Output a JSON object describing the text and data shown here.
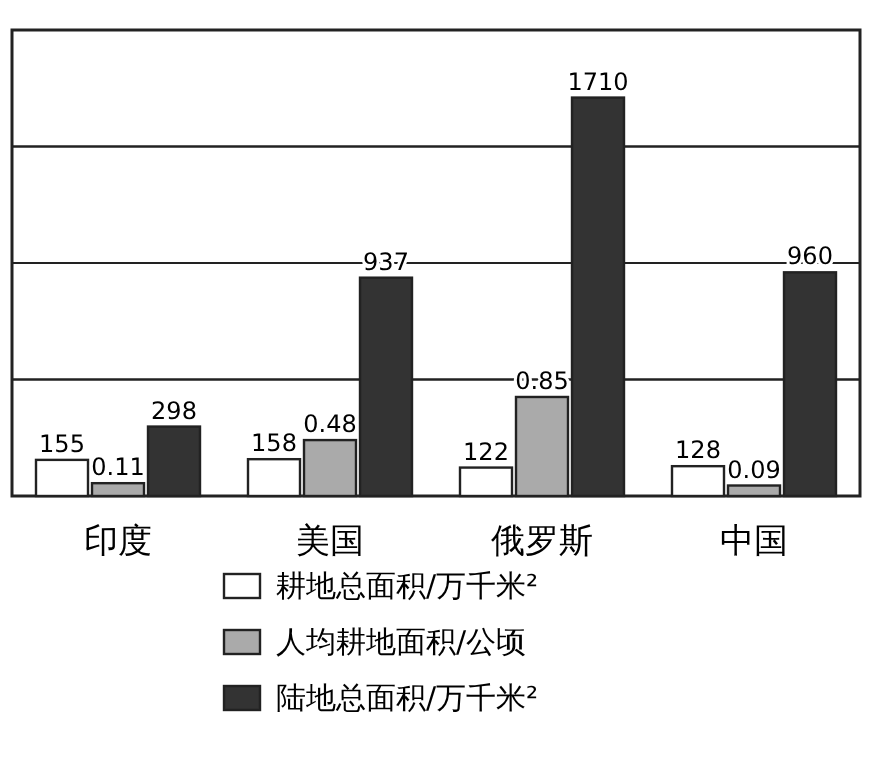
{
  "chart_data": {
    "type": "bar",
    "categories": [
      "印度",
      "美国",
      "俄罗斯",
      "中国"
    ],
    "series": [
      {
        "name": "耕地总面积/万千米²",
        "color": "#ffffff",
        "values": [
          155,
          158,
          122,
          128
        ],
        "axis": "y"
      },
      {
        "name": "人均耕地面积/公顷",
        "color": "#aaaaaa",
        "values": [
          0.11,
          0.48,
          0.85,
          0.09
        ],
        "axis": "y2"
      },
      {
        "name": "陆地总面积/万千米²",
        "color": "#333333",
        "values": [
          298,
          937,
          1710,
          960
        ],
        "axis": "y"
      }
    ],
    "ylim": [
      0,
      2000
    ],
    "yticks": [
      {
        "value": 500,
        "label": null
      },
      {
        "value": 1000,
        "label": null
      },
      {
        "value": 1500,
        "label": null
      }
    ],
    "y2lim": [
      0,
      4
    ],
    "y2ticks": [
      {
        "value": 1,
        "label": null
      },
      {
        "value": 2,
        "label": null
      },
      {
        "value": 3,
        "label": null
      }
    ],
    "grid": "y",
    "tick_labels": "x",
    "legend": "bottom",
    "data_labels": true
  }
}
